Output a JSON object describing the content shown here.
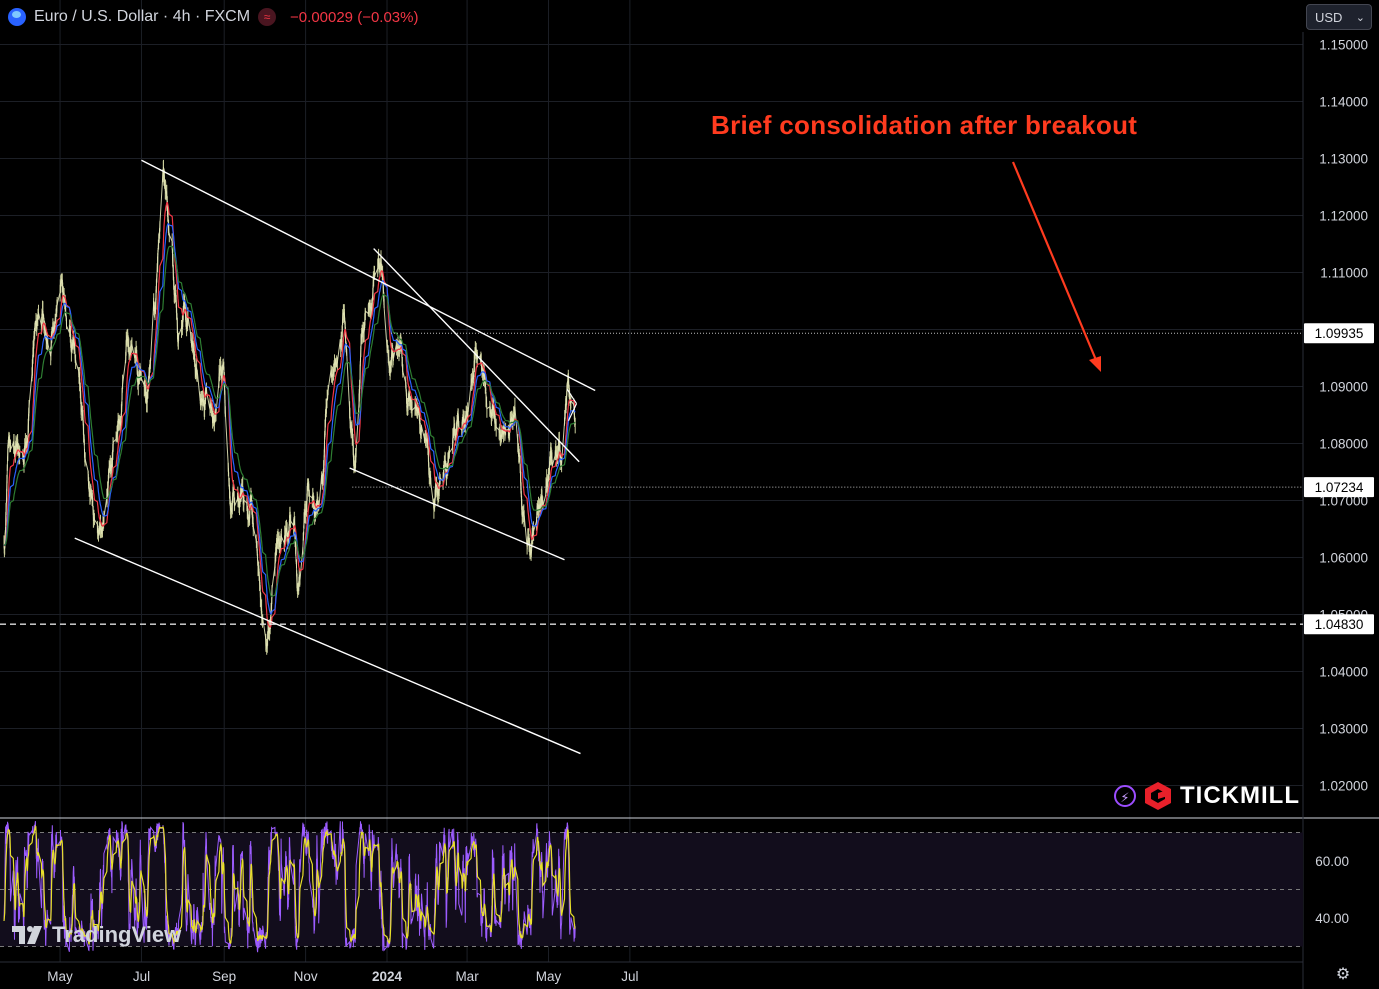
{
  "header": {
    "title": "Euro / U.S. Dollar · 4h · FXCM",
    "change": "−0.00029 (−0.03%)",
    "currency": "USD"
  },
  "annotation": "Brief consolidation after breakout",
  "branding": {
    "tradingview": "TradingView",
    "tickmill": "TICKMILL"
  },
  "chart_data": {
    "type": "line",
    "price_axis": {
      "ticks": [
        "1.15000",
        "1.14000",
        "1.13000",
        "1.12000",
        "1.11000",
        "1.10000",
        "1.09000",
        "1.08000",
        "1.07000",
        "1.06000",
        "1.05000",
        "1.04000",
        "1.03000",
        "1.02000"
      ],
      "ylim": [
        1.014,
        1.157
      ]
    },
    "time_axis": {
      "ticks": [
        "May",
        "Jul",
        "Sep",
        "Nov",
        "2024",
        "Mar",
        "May",
        "Jul"
      ]
    },
    "price_labels": [
      {
        "text": "1.09935",
        "value": 1.09935
      },
      {
        "text": "1.07234",
        "value": 1.07234
      },
      {
        "text": "1.04830",
        "value": 1.0483
      }
    ],
    "price_anchors": [
      [
        "2023-03-20",
        1.062
      ],
      [
        "2023-03-24",
        1.081
      ],
      [
        "2023-04-03",
        1.078
      ],
      [
        "2023-04-14",
        1.1
      ],
      [
        "2023-04-24",
        1.098
      ],
      [
        "2023-05-02",
        1.106
      ],
      [
        "2023-05-08",
        1.098
      ],
      [
        "2023-05-31",
        1.064
      ],
      [
        "2023-06-14",
        1.083
      ],
      [
        "2023-06-20",
        1.096
      ],
      [
        "2023-06-27",
        1.092
      ],
      [
        "2023-07-06",
        1.089
      ],
      [
        "2023-07-10",
        1.104
      ],
      [
        "2023-07-18",
        1.126
      ],
      [
        "2023-07-23",
        1.115
      ],
      [
        "2023-07-28",
        1.099
      ],
      [
        "2023-08-04",
        1.101
      ],
      [
        "2023-08-16",
        1.087
      ],
      [
        "2023-08-25",
        1.084
      ],
      [
        "2023-08-30",
        1.094
      ],
      [
        "2023-09-06",
        1.071
      ],
      [
        "2023-09-14",
        1.071
      ],
      [
        "2023-09-21",
        1.067
      ],
      [
        "2023-10-03",
        1.047
      ],
      [
        "2023-10-11",
        1.062
      ],
      [
        "2023-10-23",
        1.066
      ],
      [
        "2023-10-27",
        1.055
      ],
      [
        "2023-11-03",
        1.073
      ],
      [
        "2023-11-10",
        1.068
      ],
      [
        "2023-11-20",
        1.092
      ],
      [
        "2023-11-29",
        1.101
      ],
      [
        "2023-12-08",
        1.076
      ],
      [
        "2023-12-14",
        1.099
      ],
      [
        "2023-12-27",
        1.112
      ],
      [
        "2024-01-02",
        1.095
      ],
      [
        "2024-01-10",
        1.098
      ],
      [
        "2024-01-19",
        1.087
      ],
      [
        "2024-01-31",
        1.081
      ],
      [
        "2024-02-05",
        1.072
      ],
      [
        "2024-02-15",
        1.076
      ],
      [
        "2024-02-23",
        1.083
      ],
      [
        "2024-03-01",
        1.083
      ],
      [
        "2024-03-08",
        1.096
      ],
      [
        "2024-03-19",
        1.086
      ],
      [
        "2024-03-25",
        1.083
      ],
      [
        "2024-04-05",
        1.085
      ],
      [
        "2024-04-16",
        1.062
      ],
      [
        "2024-04-26",
        1.07
      ],
      [
        "2024-05-03",
        1.076
      ],
      [
        "2024-05-10",
        1.078
      ],
      [
        "2024-05-16",
        1.089
      ],
      [
        "2024-05-21",
        1.086
      ]
    ],
    "moving_averages": [
      {
        "color": "#f23645",
        "length_bars": 24
      },
      {
        "color": "#2962ff",
        "length_bars": 42
      },
      {
        "color": "#2e7d32",
        "length_bars": 66
      }
    ],
    "trendlines": [
      {
        "from": [
          "2023-07-01",
          1.1297
        ],
        "to": [
          "2024-06-05",
          1.0893
        ]
      },
      {
        "from": [
          "2023-05-12",
          1.0634
        ],
        "to": [
          "2024-05-25",
          1.0256
        ]
      },
      {
        "from": [
          "2023-12-22",
          1.1142
        ],
        "to": [
          "2024-05-24",
          1.0768
        ]
      },
      {
        "from": [
          "2023-12-04",
          1.0757
        ],
        "to": [
          "2024-05-13",
          1.0596
        ]
      }
    ],
    "oscillator": {
      "ticks": [
        "60.00",
        "40.00"
      ],
      "levels": [
        70,
        50,
        30
      ],
      "ylim": [
        25,
        75
      ]
    }
  }
}
